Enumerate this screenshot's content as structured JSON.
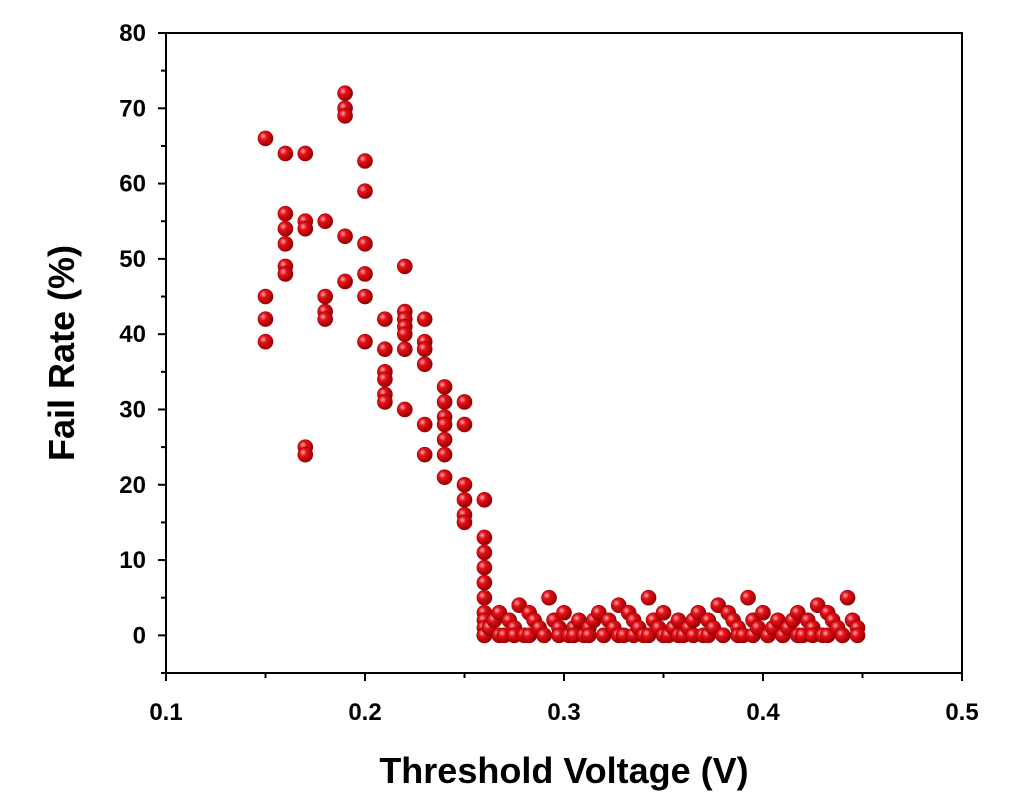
{
  "chart_data": {
    "type": "scatter",
    "title": "",
    "xlabel": "Threshold Voltage (V)",
    "ylabel": "Fail Rate (%)",
    "xlim": [
      0.1,
      0.5
    ],
    "ylim": [
      -5,
      80
    ],
    "xticks": [
      "0.1",
      "0.2",
      "0.3",
      "0.4",
      "0.5"
    ],
    "xtick_values": [
      0.1,
      0.2,
      0.3,
      0.4,
      0.5
    ],
    "yticks": [
      "0",
      "10",
      "20",
      "30",
      "40",
      "50",
      "60",
      "70",
      "80"
    ],
    "ytick_values": [
      0,
      10,
      20,
      30,
      40,
      50,
      60,
      70,
      80
    ],
    "marker_color": "#e8101a",
    "marker_edge": "#9a0000",
    "grid": false,
    "series": [
      {
        "name": "Fail Rate",
        "points": [
          [
            0.15,
            66
          ],
          [
            0.15,
            45
          ],
          [
            0.15,
            42
          ],
          [
            0.15,
            39
          ],
          [
            0.16,
            64
          ],
          [
            0.16,
            56
          ],
          [
            0.16,
            54
          ],
          [
            0.16,
            52
          ],
          [
            0.16,
            49
          ],
          [
            0.16,
            48
          ],
          [
            0.17,
            64
          ],
          [
            0.17,
            55
          ],
          [
            0.17,
            54
          ],
          [
            0.17,
            25
          ],
          [
            0.17,
            24
          ],
          [
            0.18,
            55
          ],
          [
            0.18,
            45
          ],
          [
            0.18,
            43
          ],
          [
            0.18,
            42
          ],
          [
            0.19,
            72
          ],
          [
            0.19,
            70
          ],
          [
            0.19,
            69
          ],
          [
            0.19,
            53
          ],
          [
            0.19,
            47
          ],
          [
            0.2,
            63
          ],
          [
            0.2,
            59
          ],
          [
            0.2,
            52
          ],
          [
            0.2,
            48
          ],
          [
            0.2,
            45
          ],
          [
            0.2,
            39
          ],
          [
            0.21,
            42
          ],
          [
            0.21,
            38
          ],
          [
            0.21,
            35
          ],
          [
            0.21,
            34
          ],
          [
            0.21,
            32
          ],
          [
            0.21,
            31
          ],
          [
            0.22,
            49
          ],
          [
            0.22,
            43
          ],
          [
            0.22,
            42
          ],
          [
            0.22,
            41
          ],
          [
            0.22,
            40
          ],
          [
            0.22,
            38
          ],
          [
            0.22,
            30
          ],
          [
            0.23,
            42
          ],
          [
            0.23,
            39
          ],
          [
            0.23,
            38
          ],
          [
            0.23,
            36
          ],
          [
            0.23,
            28
          ],
          [
            0.23,
            24
          ],
          [
            0.24,
            33
          ],
          [
            0.24,
            31
          ],
          [
            0.24,
            29
          ],
          [
            0.24,
            28
          ],
          [
            0.24,
            26
          ],
          [
            0.24,
            24
          ],
          [
            0.24,
            21
          ],
          [
            0.25,
            31
          ],
          [
            0.25,
            28
          ],
          [
            0.25,
            20
          ],
          [
            0.25,
            18
          ],
          [
            0.25,
            16
          ],
          [
            0.25,
            15
          ],
          [
            0.26,
            18
          ],
          [
            0.26,
            13
          ],
          [
            0.26,
            11
          ],
          [
            0.26,
            9
          ],
          [
            0.26,
            7
          ],
          [
            0.26,
            5
          ],
          [
            0.26,
            3
          ],
          [
            0.26,
            2
          ],
          [
            0.26,
            1
          ],
          [
            0.26,
            0
          ]
        ],
        "cluster": {
          "x_start": 0.26,
          "x_end": 0.448,
          "step": 0.0025,
          "y_values": [
            0,
            1,
            2,
            3,
            0,
            2,
            1,
            4,
            0,
            3,
            2,
            1,
            0,
            5,
            2,
            1,
            3,
            0,
            1,
            2
          ]
        }
      }
    ]
  }
}
